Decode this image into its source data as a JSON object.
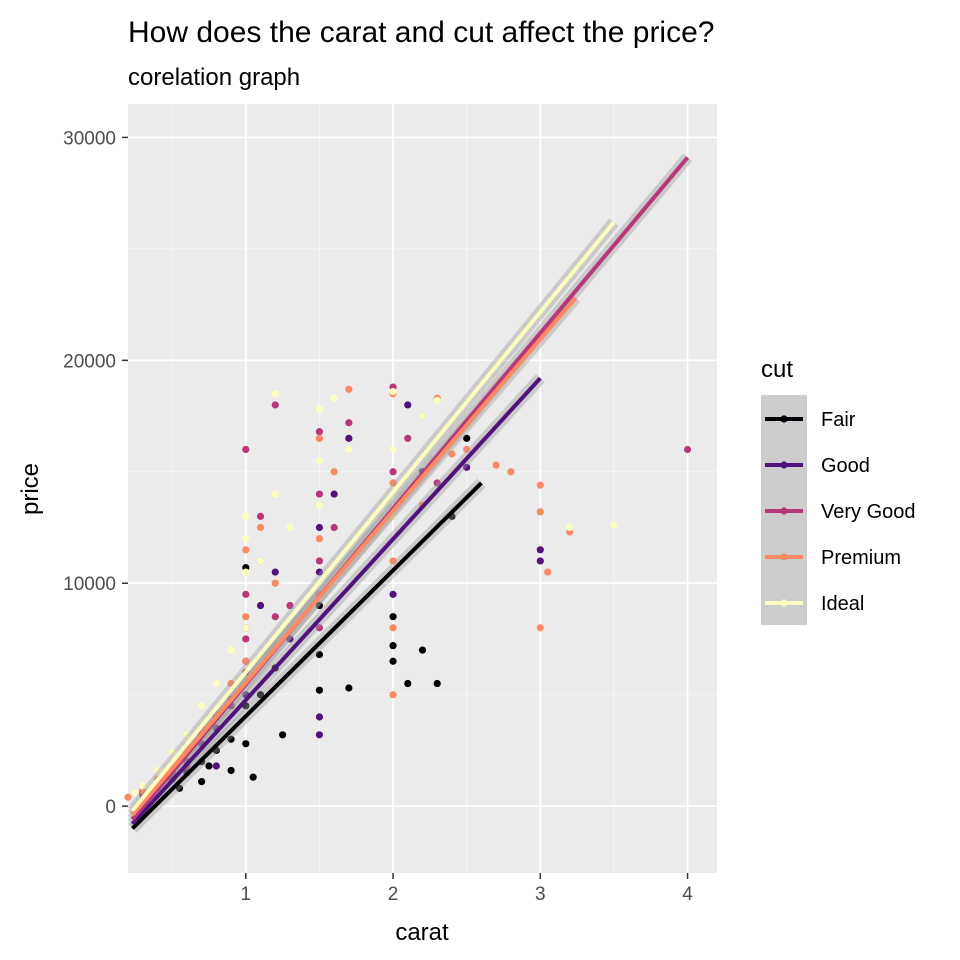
{
  "chart_data": {
    "type": "scatter",
    "title": "How does the carat and cut affect the price?",
    "subtitle": "corelation graph",
    "xlabel": "carat",
    "ylabel": "price",
    "xlim": [
      0.2,
      4.2
    ],
    "ylim": [
      -3000,
      31500
    ],
    "x_ticks": [
      1,
      2,
      3,
      4
    ],
    "y_ticks": [
      0,
      10000,
      20000,
      30000
    ],
    "x_tick_labels": [
      "1",
      "2",
      "3",
      "4"
    ],
    "y_tick_labels": [
      "0",
      "10000",
      "20000",
      "30000"
    ],
    "grid": true,
    "legend": {
      "title": "cut",
      "placement": "right"
    },
    "series": [
      {
        "name": "Fair",
        "color": "#000004",
        "fit": {
          "x": [
            0.23,
            2.6
          ],
          "y": [
            -1000,
            14500
          ]
        },
        "points": [
          [
            0.3,
            700
          ],
          [
            0.4,
            900
          ],
          [
            0.5,
            1200
          ],
          [
            0.55,
            800
          ],
          [
            0.6,
            1500
          ],
          [
            0.7,
            1100
          ],
          [
            0.7,
            2000
          ],
          [
            0.75,
            1800
          ],
          [
            0.8,
            2500
          ],
          [
            0.9,
            1600
          ],
          [
            0.9,
            3000
          ],
          [
            1.0,
            2800
          ],
          [
            1.0,
            4500
          ],
          [
            1.0,
            10700
          ],
          [
            1.05,
            1300
          ],
          [
            1.1,
            5000
          ],
          [
            1.2,
            6200
          ],
          [
            1.25,
            3200
          ],
          [
            1.5,
            5200
          ],
          [
            1.5,
            6800
          ],
          [
            1.5,
            9000
          ],
          [
            1.7,
            5300
          ],
          [
            2.0,
            7200
          ],
          [
            2.0,
            8500
          ],
          [
            2.0,
            6500
          ],
          [
            2.1,
            5500
          ],
          [
            2.2,
            7000
          ],
          [
            2.3,
            5500
          ],
          [
            2.4,
            13000
          ],
          [
            2.5,
            16500
          ]
        ]
      },
      {
        "name": "Good",
        "color": "#51127c",
        "fit": {
          "x": [
            0.23,
            3.0
          ],
          "y": [
            -800,
            19200
          ]
        },
        "points": [
          [
            0.3,
            600
          ],
          [
            0.4,
            800
          ],
          [
            0.5,
            1500
          ],
          [
            0.6,
            2000
          ],
          [
            0.7,
            2800
          ],
          [
            0.8,
            3500
          ],
          [
            0.9,
            4500
          ],
          [
            1.0,
            5000
          ],
          [
            1.0,
            6500
          ],
          [
            1.0,
            8000
          ],
          [
            1.1,
            9000
          ],
          [
            1.2,
            10500
          ],
          [
            1.5,
            3200
          ],
          [
            1.5,
            4000
          ],
          [
            1.5,
            10500
          ],
          [
            1.5,
            12500
          ],
          [
            1.6,
            14000
          ],
          [
            1.7,
            16500
          ],
          [
            2.0,
            9500
          ],
          [
            2.0,
            13000
          ],
          [
            2.1,
            18000
          ],
          [
            2.2,
            15000
          ],
          [
            2.5,
            15200
          ],
          [
            3.0,
            11500
          ],
          [
            3.0,
            11000
          ],
          [
            1.3,
            7500
          ],
          [
            0.8,
            1800
          ]
        ]
      },
      {
        "name": "Very Good",
        "color": "#b73779",
        "fit": {
          "x": [
            0.23,
            4.0
          ],
          "y": [
            -600,
            29100
          ]
        },
        "points": [
          [
            0.3,
            500
          ],
          [
            0.4,
            1000
          ],
          [
            0.5,
            1800
          ],
          [
            0.6,
            2500
          ],
          [
            0.7,
            3200
          ],
          [
            0.8,
            4000
          ],
          [
            0.9,
            4800
          ],
          [
            1.0,
            6000
          ],
          [
            1.0,
            7500
          ],
          [
            1.0,
            9500
          ],
          [
            1.0,
            16000
          ],
          [
            1.1,
            11000
          ],
          [
            1.1,
            13000
          ],
          [
            1.2,
            8500
          ],
          [
            1.2,
            18000
          ],
          [
            1.5,
            8000
          ],
          [
            1.5,
            11000
          ],
          [
            1.5,
            14000
          ],
          [
            1.5,
            16800
          ],
          [
            1.6,
            12500
          ],
          [
            1.7,
            17200
          ],
          [
            2.0,
            15000
          ],
          [
            2.0,
            18800
          ],
          [
            2.1,
            16500
          ],
          [
            2.2,
            17500
          ],
          [
            2.3,
            14500
          ],
          [
            4.0,
            16000
          ],
          [
            1.3,
            9000
          ],
          [
            0.6,
            1800
          ]
        ]
      },
      {
        "name": "Premium",
        "color": "#fc8961",
        "fit": {
          "x": [
            0.23,
            3.24
          ],
          "y": [
            -400,
            22800
          ]
        },
        "points": [
          [
            0.2,
            400
          ],
          [
            0.3,
            700
          ],
          [
            0.4,
            1200
          ],
          [
            0.5,
            1900
          ],
          [
            0.6,
            2700
          ],
          [
            0.7,
            3500
          ],
          [
            0.8,
            4200
          ],
          [
            0.9,
            5500
          ],
          [
            1.0,
            6500
          ],
          [
            1.0,
            8500
          ],
          [
            1.0,
            11500
          ],
          [
            1.1,
            12500
          ],
          [
            1.2,
            10000
          ],
          [
            1.5,
            9500
          ],
          [
            1.5,
            12000
          ],
          [
            1.5,
            16500
          ],
          [
            1.6,
            15000
          ],
          [
            1.7,
            18700
          ],
          [
            2.0,
            5000
          ],
          [
            2.0,
            8000
          ],
          [
            2.0,
            11000
          ],
          [
            2.0,
            14500
          ],
          [
            2.0,
            18500
          ],
          [
            2.2,
            13500
          ],
          [
            2.3,
            18300
          ],
          [
            2.4,
            15800
          ],
          [
            2.5,
            16000
          ],
          [
            2.7,
            15300
          ],
          [
            2.8,
            15000
          ],
          [
            3.0,
            14400
          ],
          [
            3.0,
            13200
          ],
          [
            3.0,
            8000
          ],
          [
            3.05,
            10500
          ],
          [
            3.2,
            12300
          ]
        ]
      },
      {
        "name": "Ideal",
        "color": "#fcfdbf",
        "fit": {
          "x": [
            0.23,
            3.5
          ],
          "y": [
            -200,
            26200
          ]
        },
        "points": [
          [
            0.25,
            600
          ],
          [
            0.3,
            900
          ],
          [
            0.4,
            1600
          ],
          [
            0.5,
            2400
          ],
          [
            0.6,
            3200
          ],
          [
            0.7,
            4500
          ],
          [
            0.8,
            5500
          ],
          [
            0.9,
            7000
          ],
          [
            1.0,
            8000
          ],
          [
            1.0,
            10500
          ],
          [
            1.0,
            12000
          ],
          [
            1.0,
            13000
          ],
          [
            1.1,
            11000
          ],
          [
            1.2,
            14000
          ],
          [
            1.3,
            12500
          ],
          [
            1.5,
            10000
          ],
          [
            1.5,
            13500
          ],
          [
            1.5,
            15500
          ],
          [
            1.5,
            17800
          ],
          [
            1.6,
            18300
          ],
          [
            1.7,
            16000
          ],
          [
            2.0,
            13000
          ],
          [
            2.0,
            16000
          ],
          [
            2.0,
            18600
          ],
          [
            2.2,
            17500
          ],
          [
            2.3,
            18200
          ],
          [
            2.5,
            17300
          ],
          [
            3.2,
            12500
          ],
          [
            3.5,
            12600
          ],
          [
            1.2,
            18500
          ]
        ]
      }
    ]
  }
}
